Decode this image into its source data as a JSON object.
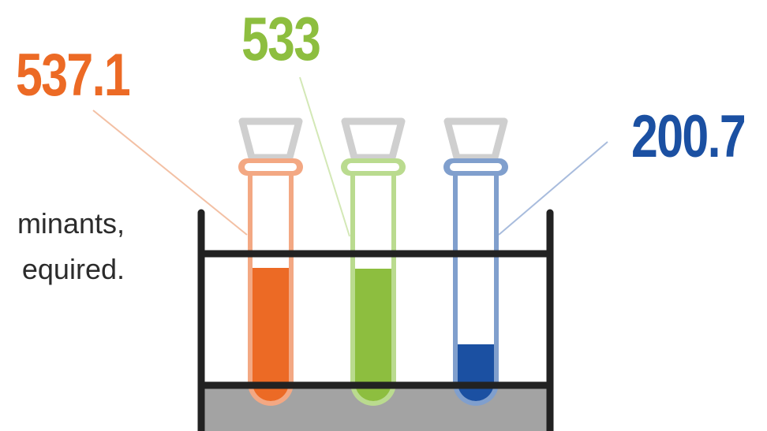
{
  "text_lines": [
    "minants,",
    "equired."
  ],
  "chart_data": {
    "type": "bar",
    "values": [
      537.1,
      533,
      200.7
    ],
    "value_labels": [
      "537.1",
      "533",
      "200.7"
    ],
    "colors": [
      "#ec6a25",
      "#8dbe3f",
      "#1b50a2"
    ],
    "tube_colors": [
      "#f3a883",
      "#badb8f",
      "#809fcd"
    ],
    "leader_colors": [
      "#f3c0a4",
      "#d3e8b6",
      "#a8bcdd"
    ],
    "xlabel": "",
    "ylabel": "",
    "ylim": [
      0,
      1300
    ],
    "grid": false,
    "legend": "none"
  }
}
